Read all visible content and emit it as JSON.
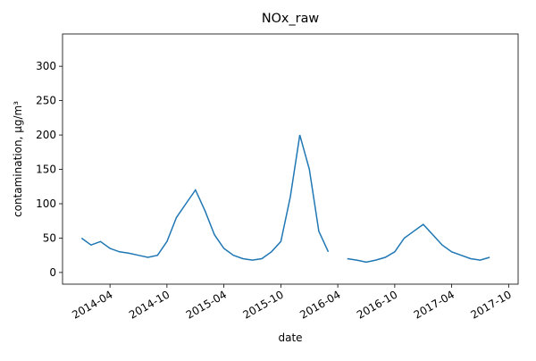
{
  "chart_data": {
    "type": "line",
    "title": "NOx_raw",
    "x_label": "date",
    "y_label": "contamination, µg/m³",
    "x": [
      "2014-01",
      "2014-02",
      "2014-03",
      "2014-04",
      "2014-05",
      "2014-06",
      "2014-07",
      "2014-08",
      "2014-09",
      "2014-10",
      "2014-11",
      "2014-12",
      "2015-01",
      "2015-02",
      "2015-03",
      "2015-04",
      "2015-05",
      "2015-06",
      "2015-07",
      "2015-08",
      "2015-09",
      "2015-10",
      "2015-11",
      "2015-12",
      "2016-01",
      "2016-02",
      "2016-03",
      "2016-04",
      "2016-05",
      "2016-06",
      "2016-07",
      "2016-08",
      "2016-09",
      "2016-10",
      "2016-11",
      "2016-12",
      "2017-01",
      "2017-02",
      "2017-03",
      "2017-04",
      "2017-05",
      "2017-06",
      "2017-07",
      "2017-08"
    ],
    "series": [
      {
        "name": "NOx_raw",
        "color": "#1f77b4",
        "values": [
          50,
          40,
          45,
          35,
          30,
          28,
          25,
          22,
          25,
          45,
          80,
          100,
          120,
          90,
          55,
          35,
          25,
          20,
          18,
          20,
          30,
          45,
          110,
          200,
          150,
          60,
          30,
          null,
          20,
          18,
          15,
          18,
          22,
          30,
          50,
          60,
          70,
          55,
          40,
          30,
          25,
          20,
          18,
          22
        ]
      }
    ],
    "xlim": [
      "2013-11",
      "2017-11"
    ],
    "xticks": [
      "2014-04",
      "2014-10",
      "2015-04",
      "2015-10",
      "2016-04",
      "2016-10",
      "2017-04",
      "2017-10"
    ],
    "ylim": [
      -17,
      347
    ],
    "yticks": [
      0,
      50,
      100,
      150,
      200,
      250,
      300
    ]
  }
}
